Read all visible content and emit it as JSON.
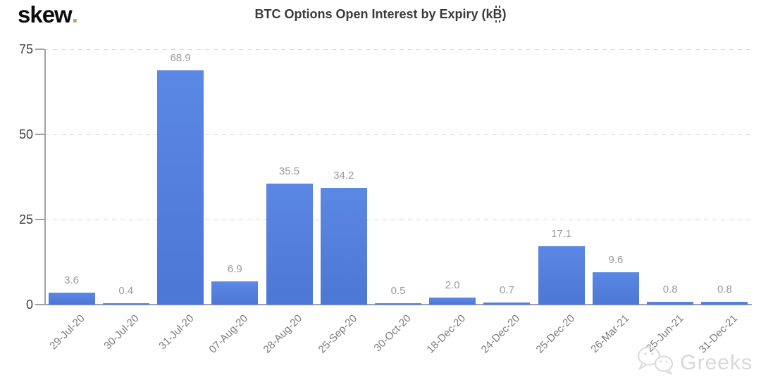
{
  "logo": {
    "text": "skew",
    "dot": ".",
    "dot_color": "#c8a35a"
  },
  "header": {
    "title_parts": {
      "prefix": "BTC Options Open Interest by Expiry (k",
      "symbol": "B",
      "suffix": ")"
    }
  },
  "watermark": {
    "text": "Greeks",
    "icon": "wechat-icon"
  },
  "chart_data": {
    "type": "bar",
    "title": "BTC Options Open Interest by Expiry (k₿)",
    "categories": [
      "29-Jul-20",
      "30-Jul-20",
      "31-Jul-20",
      "07-Aug-20",
      "28-Aug-20",
      "25-Sep-20",
      "30-Oct-20",
      "18-Dec-20",
      "24-Dec-20",
      "25-Dec-20",
      "26-Mar-21",
      "25-Jun-21",
      "31-Dec-21"
    ],
    "values": [
      3.6,
      0.4,
      68.9,
      6.9,
      35.5,
      34.2,
      0.5,
      2.0,
      0.7,
      17.1,
      9.6,
      0.8,
      0.8
    ],
    "value_labels": [
      "3.6",
      "0.4",
      "68.9",
      "6.9",
      "35.5",
      "34.2",
      "0.5",
      "2.0",
      "0.7",
      "17.1",
      "9.6",
      "0.8",
      "0.8"
    ],
    "xlabel": "",
    "ylabel": "",
    "ylim": [
      0,
      75
    ],
    "yticks": [
      0,
      25,
      50,
      75
    ],
    "grid": "horizontal dashed at 25/50/75",
    "legend_position": "none",
    "bar_color": "#5282dd",
    "value_label_color": "#9a9a9a",
    "axis_color": "#9fa2a5",
    "tick_label_color": "#7b7b7b"
  }
}
